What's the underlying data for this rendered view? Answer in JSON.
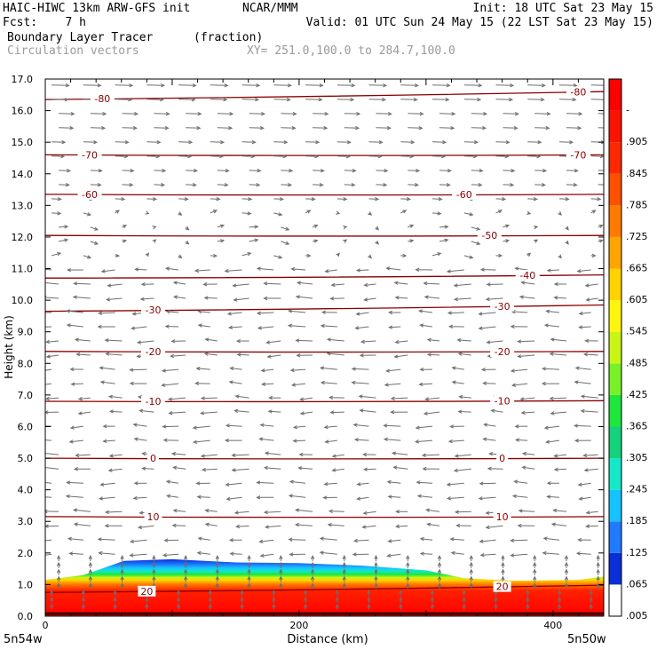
{
  "header": {
    "model": "HAIC-HIWC 13km ARW-GFS init",
    "org": "NCAR/MMM",
    "init": "Init: 18 UTC Sat 23 May 15",
    "fcst": "Fcst:    7 h",
    "valid": "Valid: 01 UTC Sun 24 May 15 (22 LST Sat 23 May 15)",
    "field": "Boundary Layer Tracer",
    "units": "(fraction)",
    "vectors": "Circulation vectors",
    "xy": "XY= 251.0,100.0 to 284.7,100.0"
  },
  "chart_data": {
    "type": "heatmap",
    "xlabel": "Distance (km)",
    "ylabel": "Height (km)",
    "xlim": [
      0,
      440
    ],
    "ylim": [
      0,
      17
    ],
    "x_ticks": [
      0,
      200,
      400
    ],
    "y_ticks": [
      "0.0",
      "1.0",
      "2.0",
      "3.0",
      "4.0",
      "5.0",
      "6.0",
      "7.0",
      "8.0",
      "9.0",
      "10.0",
      "11.0",
      "12.0",
      "13.0",
      "14.0",
      "15.0",
      "16.0",
      "17.0"
    ],
    "x_endpoints": [
      "5n54w",
      "5n50w"
    ],
    "colorbar": {
      "labels": [
        ".005",
        ".065",
        ".125",
        ".185",
        ".245",
        ".305",
        ".365",
        ".425",
        ".485",
        ".545",
        ".605",
        ".665",
        ".725",
        ".785",
        ".845",
        ".905",
        "-"
      ],
      "colors": [
        "#ffffff",
        "#0a2fd8",
        "#1f7aff",
        "#14c3ff",
        "#14e8c8",
        "#14d27a",
        "#1ee63c",
        "#78f028",
        "#c8f514",
        "#fff50a",
        "#ffd200",
        "#ffa500",
        "#ff7a00",
        "#ff5000",
        "#ff2800",
        "#fa1400",
        "#ff0000"
      ]
    },
    "tracer_top_km": [
      {
        "x": 0,
        "top": 1.15
      },
      {
        "x": 30,
        "top": 1.3
      },
      {
        "x": 62,
        "top": 1.75
      },
      {
        "x": 100,
        "top": 1.8
      },
      {
        "x": 150,
        "top": 1.7
      },
      {
        "x": 200,
        "top": 1.68
      },
      {
        "x": 250,
        "top": 1.6
      },
      {
        "x": 300,
        "top": 1.45
      },
      {
        "x": 330,
        "top": 1.2
      },
      {
        "x": 370,
        "top": 1.12
      },
      {
        "x": 420,
        "top": 1.15
      },
      {
        "x": 440,
        "top": 1.25
      }
    ],
    "temperature_contours": [
      {
        "label": "20",
        "h0": 0.75,
        "h1": 0.98,
        "lx": [
          80,
          360
        ]
      },
      {
        "label": "10",
        "h0": 3.15,
        "h1": 3.15,
        "lx": [
          85,
          360
        ]
      },
      {
        "label": "0",
        "h0": 5.0,
        "h1": 5.0,
        "lx": [
          85,
          360
        ]
      },
      {
        "label": "-10",
        "h0": 6.8,
        "h1": 6.82,
        "lx": [
          85,
          360
        ]
      },
      {
        "label": "-20",
        "h0": 8.38,
        "h1": 8.38,
        "lx": [
          85,
          360
        ]
      },
      {
        "label": "-30",
        "h0": 9.65,
        "h1": 9.85,
        "lx": [
          85,
          360
        ]
      },
      {
        "label": "-40",
        "h0": 10.7,
        "h1": 10.8,
        "lx": [
          380
        ]
      },
      {
        "label": "-50",
        "h0": 12.05,
        "h1": 12.05,
        "lx": [
          350
        ]
      },
      {
        "label": "-60",
        "h0": 13.35,
        "h1": 13.35,
        "lx": [
          35,
          330
        ]
      },
      {
        "label": "-70",
        "h0": 14.6,
        "h1": 14.6,
        "lx": [
          35,
          420
        ]
      },
      {
        "label": "-80",
        "h0": 16.35,
        "h1": 16.6,
        "lx": [
          45,
          420
        ]
      }
    ]
  }
}
